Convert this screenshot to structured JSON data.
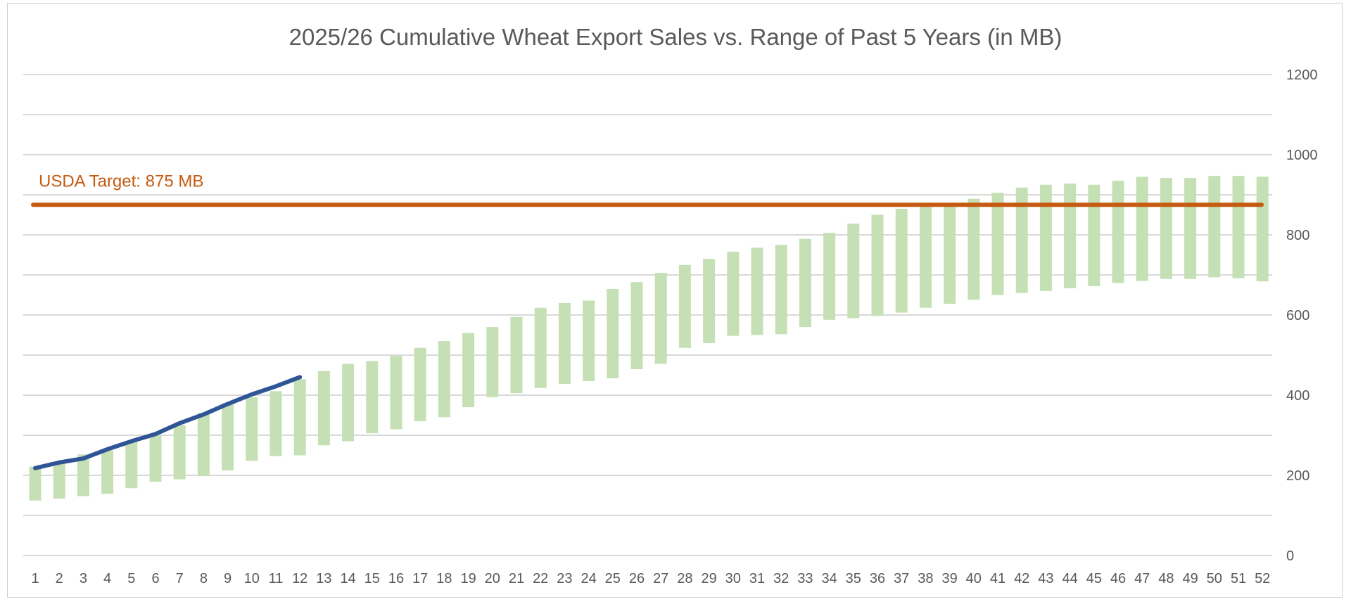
{
  "chart_data": {
    "type": "bar",
    "title": "2025/26 Cumulative Wheat Export Sales vs. Range of Past 5 Years (in MB)",
    "xlabel": "",
    "ylabel": "",
    "ylim": [
      0,
      1200
    ],
    "y_ticks": [
      0,
      200,
      400,
      600,
      800,
      1000,
      1200
    ],
    "grid": true,
    "y_axis_side": "right",
    "categories": [
      "1",
      "2",
      "3",
      "4",
      "5",
      "6",
      "7",
      "8",
      "9",
      "10",
      "11",
      "12",
      "13",
      "14",
      "15",
      "16",
      "17",
      "18",
      "19",
      "20",
      "21",
      "22",
      "23",
      "24",
      "25",
      "26",
      "27",
      "28",
      "29",
      "30",
      "31",
      "32",
      "33",
      "34",
      "35",
      "36",
      "37",
      "38",
      "39",
      "40",
      "41",
      "42",
      "43",
      "44",
      "45",
      "46",
      "47",
      "48",
      "49",
      "50",
      "51",
      "52"
    ],
    "range_series": {
      "color": "#c5e0b4",
      "low": [
        137,
        142,
        148,
        154,
        168,
        184,
        190,
        198,
        212,
        236,
        248,
        250,
        275,
        285,
        305,
        315,
        335,
        345,
        370,
        395,
        405,
        418,
        428,
        435,
        442,
        465,
        478,
        518,
        530,
        548,
        550,
        552,
        570,
        588,
        592,
        598,
        606,
        618,
        628,
        638,
        650,
        655,
        660,
        667,
        672,
        680,
        685,
        690,
        690,
        694,
        692,
        684
      ],
      "high": [
        222,
        232,
        252,
        262,
        285,
        300,
        325,
        355,
        380,
        395,
        410,
        440,
        460,
        478,
        485,
        498,
        518,
        535,
        555,
        570,
        595,
        618,
        630,
        636,
        665,
        682,
        705,
        725,
        740,
        758,
        768,
        775,
        790,
        805,
        828,
        850,
        865,
        870,
        880,
        890,
        905,
        918,
        925,
        928,
        925,
        935,
        945,
        942,
        942,
        947,
        947,
        945
      ]
    },
    "series": [
      {
        "name": "",
        "type": "line",
        "color": "#2f5597",
        "x": [
          1,
          2,
          3,
          4,
          5,
          6,
          7,
          8,
          9,
          10,
          11,
          12
        ],
        "values": [
          218,
          232,
          242,
          265,
          285,
          303,
          330,
          352,
          378,
          402,
          422,
          445
        ]
      }
    ],
    "reference_line": {
      "value": 875,
      "label": "USDA Target: 875 MB",
      "color": "#c55a11"
    }
  }
}
